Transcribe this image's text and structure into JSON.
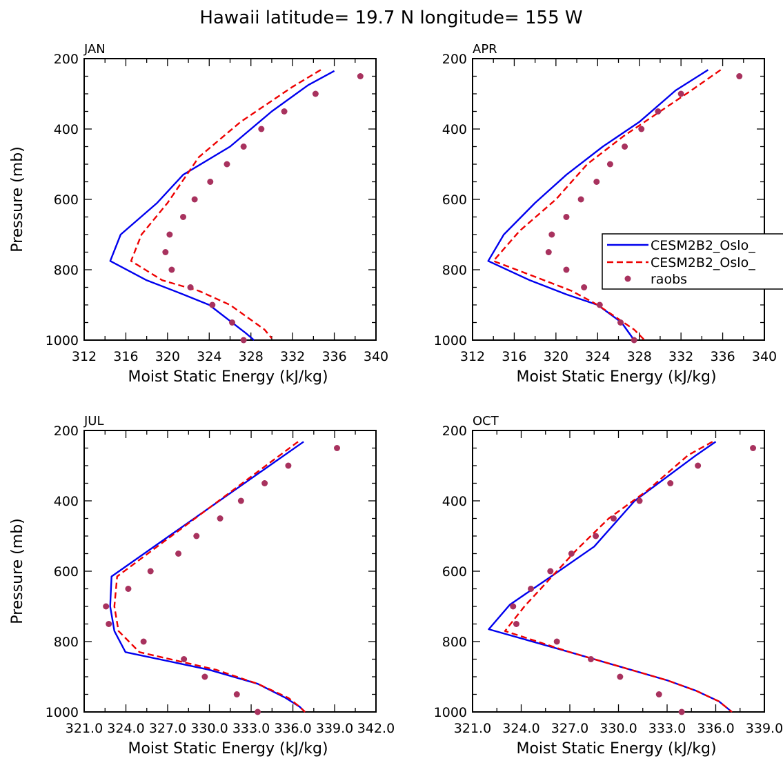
{
  "figure_title": "Hawaii  latitude= 19.7 N longitude= 155 W",
  "colors": {
    "model_a": "#0000ee",
    "model_b": "#ee0000",
    "obs": "#a8325e"
  },
  "legend": [
    "CESM2B2_Oslo_",
    "CESM2B2_Oslo_",
    "raobs"
  ],
  "chart_data": [
    {
      "type": "line",
      "panel": "JAN",
      "xlabel": "Moist Static Energy (kJ/kg)",
      "ylabel": "Pressure (mb)",
      "xlim": [
        312,
        340
      ],
      "ylim": [
        1000,
        200
      ],
      "xticks": [
        312,
        316,
        320,
        324,
        328,
        332,
        336,
        340
      ],
      "xtick_labels": [
        "312",
        "316",
        "320",
        "324",
        "328",
        "332",
        "336",
        "340"
      ],
      "yticks": [
        200,
        400,
        600,
        800,
        1000
      ],
      "ytick_labels": [
        "200",
        "400",
        "600",
        "800",
        "1000"
      ],
      "series": [
        {
          "name": "CESM2B2_Oslo_",
          "style": "solid",
          "color": "#0000ee",
          "x": [
            336.0,
            333.5,
            330.0,
            326.0,
            321.5,
            319.0,
            315.5,
            314.5,
            318.0,
            321.5,
            324.0,
            327.5,
            328.3
          ],
          "y": [
            235,
            275,
            350,
            450,
            530,
            610,
            700,
            775,
            830,
            870,
            900,
            980,
            1000
          ]
        },
        {
          "name": "CESM2B2_Oslo_",
          "style": "dashed",
          "color": "#ee0000",
          "x": [
            334.7,
            332.0,
            330.0,
            327.0,
            323.0,
            320.0,
            317.5,
            316.5,
            319.5,
            323.0,
            326.0,
            329.3,
            330.0
          ],
          "y": [
            232,
            280,
            320,
            380,
            480,
            610,
            700,
            775,
            830,
            860,
            900,
            970,
            995
          ]
        },
        {
          "name": "raobs",
          "style": "markers",
          "color": "#a8325e",
          "x": [
            338.5,
            334.2,
            331.2,
            329.0,
            327.3,
            325.7,
            324.1,
            322.6,
            321.5,
            320.2,
            319.8,
            320.4,
            322.2,
            324.3,
            326.2,
            327.3
          ],
          "y": [
            250,
            300,
            350,
            400,
            450,
            500,
            550,
            600,
            650,
            700,
            750,
            800,
            850,
            900,
            950,
            1000
          ]
        }
      ]
    },
    {
      "type": "line",
      "panel": "APR",
      "xlabel": "Moist Static Energy (kJ/kg)",
      "ylabel": "",
      "xlim": [
        312,
        340
      ],
      "ylim": [
        1000,
        200
      ],
      "xticks": [
        312,
        316,
        320,
        324,
        328,
        332,
        336,
        340
      ],
      "xtick_labels": [
        "312",
        "316",
        "320",
        "324",
        "328",
        "332",
        "336",
        "340"
      ],
      "yticks": [
        200,
        400,
        600,
        800,
        1000
      ],
      "ytick_labels": [
        "200",
        "400",
        "600",
        "800",
        "1000"
      ],
      "series": [
        {
          "name": "CESM2B2_Oslo_",
          "style": "solid",
          "color": "#0000ee",
          "x": [
            334.6,
            331.5,
            328.0,
            324.5,
            321.0,
            318.0,
            315.0,
            313.5,
            317.5,
            321.0,
            324.0,
            326.3,
            327.5
          ],
          "y": [
            232,
            290,
            380,
            450,
            530,
            610,
            700,
            775,
            830,
            870,
            900,
            950,
            1000
          ]
        },
        {
          "name": "CESM2B2_Oslo_",
          "style": "dashed",
          "color": "#ee0000",
          "x": [
            335.8,
            333.0,
            330.0,
            326.5,
            323.0,
            320.0,
            316.5,
            314.0,
            318.0,
            321.5,
            324.0,
            327.5,
            328.5
          ],
          "y": [
            232,
            290,
            350,
            420,
            500,
            600,
            690,
            775,
            820,
            860,
            900,
            970,
            1000
          ]
        },
        {
          "name": "raobs",
          "style": "markers",
          "color": "#a8325e",
          "x": [
            337.6,
            332.0,
            329.8,
            328.2,
            326.6,
            325.2,
            323.9,
            322.4,
            321.0,
            319.6,
            319.3,
            321.0,
            322.7,
            324.2,
            326.2,
            327.5
          ],
          "y": [
            250,
            300,
            350,
            400,
            450,
            500,
            550,
            600,
            650,
            700,
            750,
            800,
            850,
            900,
            950,
            1000
          ]
        }
      ]
    },
    {
      "type": "line",
      "panel": "JUL",
      "xlabel": "Moist Static Energy (kJ/kg)",
      "ylabel": "Pressure (mb)",
      "xlim": [
        321.03,
        342.0
      ],
      "ylim": [
        1000,
        200
      ],
      "xticks": [
        321.03,
        324.03,
        327.03,
        330.03,
        333.03,
        336.03,
        339.03,
        342.0
      ],
      "xtick_labels": [
        "321.0",
        "324.0",
        "327.0",
        "330.0",
        "333.0",
        "336.0",
        "339.0",
        "342.0"
      ],
      "series": [
        {
          "name": "CESM2B2_Oslo_",
          "style": "solid",
          "color": "#0000ee",
          "x": [
            336.8,
            323.0,
            322.9,
            323.2,
            324.0,
            330.0,
            333.5,
            335.5,
            336.5,
            336.9
          ],
          "y": [
            232,
            615,
            700,
            770,
            830,
            880,
            920,
            960,
            985,
            1000
          ]
        },
        {
          "name": "CESM2B2_Oslo_",
          "style": "dashed",
          "color": "#ee0000",
          "x": [
            336.4,
            323.4,
            323.2,
            323.5,
            325.0,
            330.5,
            333.5,
            335.7,
            336.5,
            336.9
          ],
          "y": [
            232,
            615,
            700,
            770,
            830,
            880,
            920,
            960,
            985,
            1000
          ]
        },
        {
          "name": "raobs",
          "style": "markers",
          "color": "#a8325e",
          "x": [
            339.2,
            335.7,
            334.0,
            332.3,
            330.8,
            329.1,
            327.8,
            325.8,
            324.2,
            322.6,
            322.8,
            325.3,
            328.2,
            329.7,
            332.0,
            333.5
          ],
          "y": [
            250,
            300,
            350,
            400,
            450,
            500,
            550,
            600,
            650,
            700,
            750,
            800,
            850,
            900,
            950,
            1000
          ]
        }
      ],
      "yticks": [
        200,
        400,
        600,
        800,
        1000
      ],
      "ytick_labels": [
        "200",
        "400",
        "600",
        "800",
        "1000"
      ]
    },
    {
      "type": "line",
      "panel": "OCT",
      "xlabel": "Moist Static Energy (kJ/kg)",
      "ylabel": "",
      "xlim": [
        321.0,
        339.0
      ],
      "ylim": [
        1000,
        200
      ],
      "xticks": [
        321.0,
        324.0,
        327.0,
        330.0,
        333.0,
        336.0,
        339.0
      ],
      "xtick_labels": [
        "321.0",
        "324.0",
        "327.0",
        "330.0",
        "333.0",
        "336.0",
        "339.0"
      ],
      "yticks": [
        200,
        400,
        600,
        800,
        1000
      ],
      "ytick_labels": [
        "200",
        "400",
        "600",
        "800",
        "1000"
      ],
      "series": [
        {
          "name": "CESM2B2_Oslo_",
          "style": "solid",
          "color": "#0000ee",
          "x": [
            336.0,
            334.8,
            331.0,
            328.5,
            326.0,
            323.3,
            322.0,
            327.0,
            330.0,
            333.0,
            334.8,
            336.2,
            337.0
          ],
          "y": [
            232,
            270,
            400,
            530,
            610,
            695,
            765,
            830,
            870,
            910,
            940,
            970,
            1000
          ]
        },
        {
          "name": "CESM2B2_Oslo_",
          "style": "dashed",
          "color": "#ee0000",
          "x": [
            335.8,
            334.3,
            331.8,
            329.4,
            327.4,
            325.8,
            324.2,
            323.0,
            327.0,
            330.0,
            333.0,
            334.8,
            336.2,
            337.0
          ],
          "y": [
            232,
            270,
            370,
            450,
            540,
            620,
            700,
            770,
            830,
            870,
            910,
            940,
            970,
            1000
          ]
        },
        {
          "name": "raobs",
          "style": "markers",
          "color": "#a8325e",
          "x": [
            338.3,
            334.9,
            333.2,
            331.3,
            329.7,
            328.6,
            327.1,
            325.8,
            324.6,
            323.5,
            323.7,
            326.2,
            328.3,
            330.1,
            332.5,
            333.9
          ],
          "y": [
            250,
            300,
            350,
            400,
            450,
            500,
            550,
            600,
            650,
            700,
            750,
            800,
            850,
            900,
            950,
            1000
          ]
        }
      ]
    }
  ]
}
